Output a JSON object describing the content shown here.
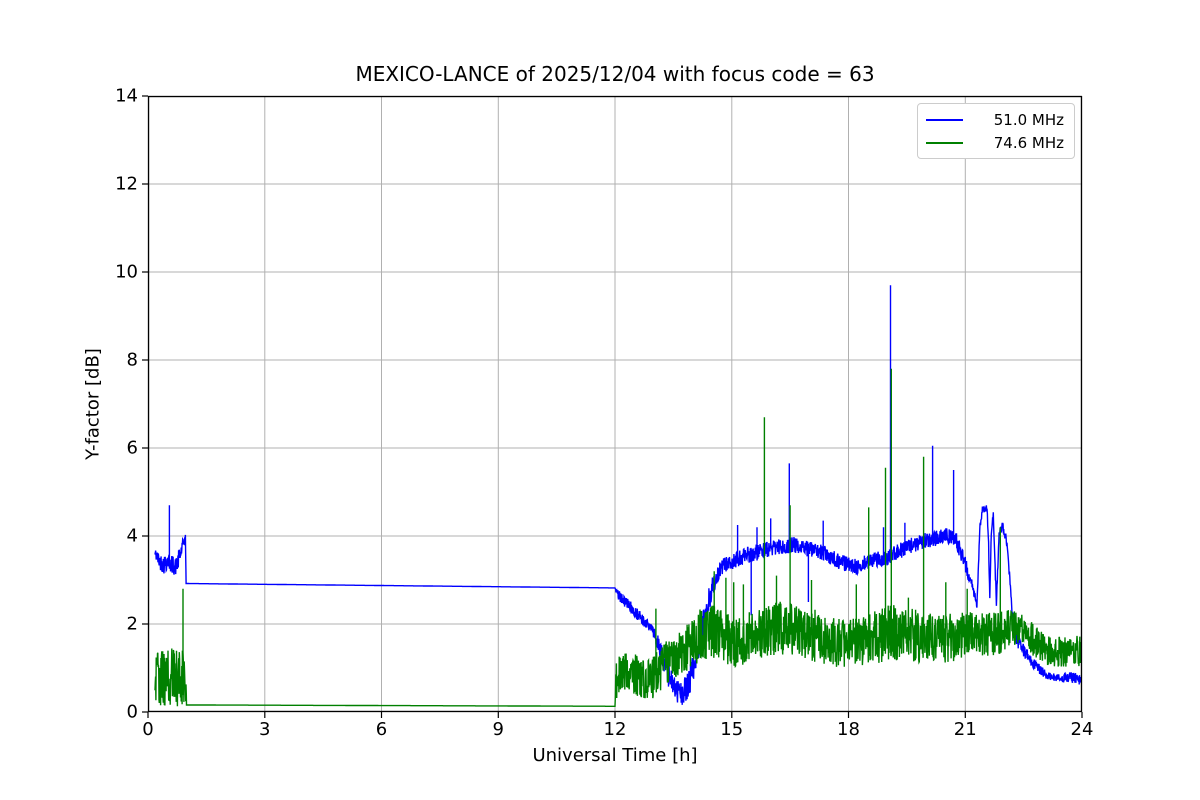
{
  "chart_data": {
    "type": "line",
    "title": "MEXICO-LANCE of 2025/12/04 with focus code = 63",
    "xlabel": "Universal Time [h]",
    "ylabel": "Y-factor [dB]",
    "xlim": [
      0,
      24
    ],
    "ylim": [
      0,
      14
    ],
    "xticks": [
      0,
      3,
      6,
      9,
      12,
      15,
      18,
      21,
      24
    ],
    "yticks": [
      0,
      2,
      4,
      6,
      8,
      10,
      12,
      14
    ],
    "grid": true,
    "grid_color": "#b0b0b0",
    "axis_color": "#000000",
    "background_color": "#ffffff",
    "legend_position": "upper right",
    "legend_border_color": "#cccccc",
    "series": [
      {
        "name": "51.0 MHz",
        "color": "#0000ff",
        "anchors": [
          [
            0.18,
            3.6,
            0.12
          ],
          [
            0.28,
            3.45,
            0.18
          ],
          [
            0.4,
            3.35,
            0.22
          ],
          [
            0.5,
            3.45,
            0.22
          ],
          [
            0.62,
            3.35,
            0.22
          ],
          [
            0.72,
            3.3,
            0.2
          ],
          [
            0.82,
            3.55,
            0.22
          ],
          [
            0.9,
            3.8,
            0.15
          ],
          [
            0.96,
            3.98,
            0.08
          ],
          [
            0.98,
            2.92,
            0.0
          ],
          [
            12.0,
            2.82,
            0.0
          ],
          [
            12.05,
            2.7,
            0.1
          ],
          [
            12.2,
            2.55,
            0.12
          ],
          [
            12.5,
            2.3,
            0.15
          ],
          [
            12.75,
            2.05,
            0.12
          ],
          [
            12.95,
            1.9,
            0.1
          ],
          [
            13.15,
            1.5,
            0.25
          ],
          [
            13.35,
            0.9,
            0.3
          ],
          [
            13.55,
            0.5,
            0.28
          ],
          [
            13.75,
            0.42,
            0.3
          ],
          [
            13.9,
            0.65,
            0.3
          ],
          [
            14.1,
            1.3,
            0.35
          ],
          [
            14.35,
            2.35,
            0.3
          ],
          [
            14.55,
            2.95,
            0.25
          ],
          [
            14.75,
            3.3,
            0.18
          ],
          [
            15.2,
            3.5,
            0.18
          ],
          [
            15.7,
            3.65,
            0.18
          ],
          [
            16.2,
            3.75,
            0.18
          ],
          [
            16.6,
            3.8,
            0.18
          ],
          [
            17.0,
            3.7,
            0.18
          ],
          [
            17.4,
            3.6,
            0.18
          ],
          [
            17.8,
            3.4,
            0.18
          ],
          [
            18.2,
            3.3,
            0.18
          ],
          [
            18.6,
            3.45,
            0.18
          ],
          [
            19.0,
            3.5,
            0.18
          ],
          [
            19.4,
            3.7,
            0.18
          ],
          [
            19.8,
            3.85,
            0.18
          ],
          [
            20.2,
            3.95,
            0.18
          ],
          [
            20.5,
            4.0,
            0.18
          ],
          [
            20.75,
            3.95,
            0.18
          ],
          [
            21.0,
            3.35,
            0.18
          ],
          [
            21.2,
            2.8,
            0.12
          ],
          [
            21.3,
            2.4,
            0.08
          ],
          [
            21.38,
            4.25,
            0.1
          ],
          [
            21.44,
            4.6,
            0.08
          ],
          [
            21.56,
            4.6,
            0.08
          ],
          [
            21.6,
            3.8,
            0.1
          ],
          [
            21.63,
            2.6,
            0.08
          ],
          [
            21.67,
            4.1,
            0.08
          ],
          [
            21.72,
            4.5,
            0.08
          ],
          [
            21.76,
            3.5,
            0.1
          ],
          [
            21.8,
            2.5,
            0.1
          ],
          [
            21.87,
            4.0,
            0.1
          ],
          [
            21.95,
            4.25,
            0.1
          ],
          [
            22.05,
            3.95,
            0.12
          ],
          [
            22.12,
            3.3,
            0.15
          ],
          [
            22.2,
            2.3,
            0.15
          ],
          [
            22.32,
            1.65,
            0.15
          ],
          [
            22.5,
            1.4,
            0.15
          ],
          [
            22.8,
            1.05,
            0.12
          ],
          [
            23.1,
            0.82,
            0.1
          ],
          [
            23.45,
            0.75,
            0.1
          ],
          [
            23.7,
            0.8,
            0.12
          ],
          [
            24.0,
            0.72,
            0.12
          ]
        ],
        "spikes": [
          [
            0.55,
            4.7
          ],
          [
            15.15,
            4.25
          ],
          [
            15.5,
            2.2
          ],
          [
            15.65,
            4.2
          ],
          [
            16.0,
            4.4
          ],
          [
            16.48,
            5.65
          ],
          [
            16.97,
            2.5
          ],
          [
            17.35,
            4.35
          ],
          [
            18.9,
            4.2
          ],
          [
            19.08,
            9.7
          ],
          [
            19.45,
            4.3
          ],
          [
            20.16,
            6.05
          ],
          [
            20.7,
            5.5
          ]
        ]
      },
      {
        "name": "74.6 MHz",
        "color": "#008000",
        "anchors": [
          [
            0.18,
            0.75,
            0.62
          ],
          [
            0.45,
            0.8,
            0.68
          ],
          [
            0.7,
            0.75,
            0.68
          ],
          [
            0.9,
            0.8,
            0.62
          ],
          [
            0.97,
            0.6,
            0.4
          ],
          [
            0.99,
            0.16,
            0.0
          ],
          [
            12.0,
            0.13,
            0.0
          ],
          [
            12.02,
            0.8,
            0.55
          ],
          [
            12.3,
            0.9,
            0.5
          ],
          [
            12.6,
            0.8,
            0.5
          ],
          [
            12.9,
            0.72,
            0.5
          ],
          [
            13.1,
            0.9,
            0.5
          ],
          [
            13.3,
            1.1,
            0.5
          ],
          [
            13.6,
            1.3,
            0.5
          ],
          [
            13.9,
            1.5,
            0.55
          ],
          [
            14.2,
            1.75,
            0.6
          ],
          [
            14.5,
            1.85,
            0.6
          ],
          [
            14.8,
            1.7,
            0.6
          ],
          [
            15.1,
            1.6,
            0.6
          ],
          [
            15.5,
            1.7,
            0.6
          ],
          [
            15.9,
            1.8,
            0.6
          ],
          [
            16.3,
            1.9,
            0.65
          ],
          [
            16.7,
            1.85,
            0.6
          ],
          [
            17.1,
            1.75,
            0.6
          ],
          [
            17.5,
            1.6,
            0.55
          ],
          [
            17.9,
            1.55,
            0.55
          ],
          [
            18.3,
            1.6,
            0.55
          ],
          [
            18.7,
            1.7,
            0.6
          ],
          [
            19.1,
            1.8,
            0.65
          ],
          [
            19.5,
            1.78,
            0.6
          ],
          [
            19.9,
            1.7,
            0.6
          ],
          [
            20.3,
            1.65,
            0.55
          ],
          [
            20.7,
            1.7,
            0.55
          ],
          [
            21.1,
            1.8,
            0.5
          ],
          [
            21.5,
            1.75,
            0.5
          ],
          [
            21.9,
            1.8,
            0.5
          ],
          [
            22.2,
            1.95,
            0.42
          ],
          [
            22.5,
            1.9,
            0.4
          ],
          [
            22.8,
            1.6,
            0.38
          ],
          [
            23.1,
            1.42,
            0.35
          ],
          [
            23.5,
            1.35,
            0.35
          ],
          [
            23.8,
            1.42,
            0.35
          ],
          [
            24.0,
            1.35,
            0.35
          ]
        ],
        "spikes": [
          [
            0.9,
            2.8
          ],
          [
            13.05,
            2.35
          ],
          [
            14.55,
            3.2
          ],
          [
            14.85,
            3.05
          ],
          [
            15.05,
            2.95
          ],
          [
            15.3,
            2.9
          ],
          [
            15.84,
            6.7
          ],
          [
            16.15,
            3.1
          ],
          [
            16.5,
            4.7
          ],
          [
            17.05,
            3.0
          ],
          [
            18.2,
            2.9
          ],
          [
            18.52,
            4.65
          ],
          [
            18.95,
            5.55
          ],
          [
            19.1,
            7.8
          ],
          [
            19.54,
            2.6
          ],
          [
            19.93,
            5.8
          ],
          [
            20.5,
            2.95
          ],
          [
            21.05,
            2.8
          ],
          [
            21.9,
            4.2
          ]
        ]
      }
    ]
  }
}
